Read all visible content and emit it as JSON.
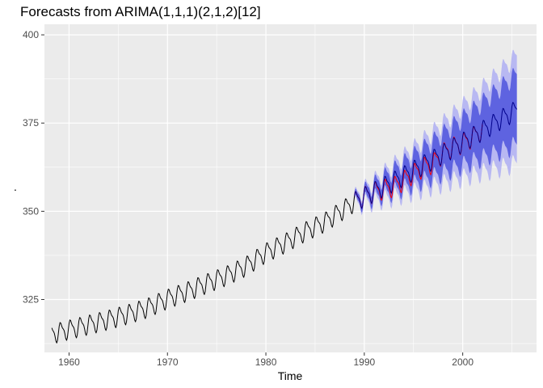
{
  "chart_data": {
    "type": "line",
    "title": "Forecasts from ARIMA(1,1,1)(2,1,2)[12]",
    "xlabel": "Time",
    "ylabel": ".",
    "x_ticks": [
      1960,
      1970,
      1980,
      1990,
      2000
    ],
    "y_ticks": [
      325,
      350,
      375,
      400
    ],
    "xlim": [
      1957.5,
      2007.5
    ],
    "ylim": [
      310,
      403
    ],
    "grid": true,
    "legend": "none",
    "colors": {
      "panel_bg": "#ebebeb",
      "grid_major": "#ffffff",
      "observed": "#000000",
      "forecast_mean": "#00008b",
      "test_actual": "#ff0000",
      "band_80": "#5e63e0",
      "band_95": "#b8b8f2"
    },
    "series": [
      {
        "style": "observed",
        "x_start": 1958.25,
        "x_end": 1989.0,
        "annual_points": [
          [
            1958.5,
            315.5
          ],
          [
            1960,
            316.6
          ],
          [
            1962,
            318.0
          ],
          [
            1964,
            319.4
          ],
          [
            1966,
            321.0
          ],
          [
            1968,
            322.8
          ],
          [
            1970,
            325.3
          ],
          [
            1972,
            327.4
          ],
          [
            1974,
            329.7
          ],
          [
            1976,
            331.9
          ],
          [
            1978,
            334.6
          ],
          [
            1980,
            338.4
          ],
          [
            1982,
            341.2
          ],
          [
            1984,
            344.4
          ],
          [
            1986,
            347.1
          ],
          [
            1988,
            350.8
          ],
          [
            1989,
            352.8
          ]
        ],
        "seasonal_amplitude": 2.9
      },
      {
        "style": "test_actual",
        "x_start": 1989.0,
        "x_end": 2002.0,
        "annual_points": [
          [
            1989,
            352.8
          ],
          [
            1990,
            354.3
          ],
          [
            1991,
            355.6
          ],
          [
            1992,
            356.4
          ],
          [
            1993,
            357.1
          ],
          [
            1994,
            358.8
          ],
          [
            1995,
            360.8
          ],
          [
            1996,
            362.6
          ],
          [
            1997,
            363.7
          ],
          [
            1998,
            366.6
          ],
          [
            1999,
            368.3
          ],
          [
            2000,
            369.4
          ],
          [
            2001,
            371.1
          ],
          [
            2002,
            373.2
          ]
        ],
        "seasonal_amplitude": 3.0
      },
      {
        "style": "forecast_mean",
        "x_start": 1989.0,
        "x_end": 2005.5,
        "annual_points": [
          [
            1989,
            352.8
          ],
          [
            1993,
            358.6
          ],
          [
            1997,
            364.8
          ],
          [
            2001,
            371.3
          ],
          [
            2005.5,
            378.9
          ]
        ],
        "seasonal_amplitude": 3.0,
        "band_80_halfwidth": [
          [
            1989,
            0.8
          ],
          [
            1993,
            3.0
          ],
          [
            1997,
            5.0
          ],
          [
            2001,
            7.2
          ],
          [
            2005.5,
            10.0
          ]
        ],
        "band_95_halfwidth": [
          [
            1989,
            1.3
          ],
          [
            1993,
            4.6
          ],
          [
            1997,
            7.7
          ],
          [
            2001,
            11.0
          ],
          [
            2005.5,
            15.3
          ]
        ]
      }
    ]
  }
}
